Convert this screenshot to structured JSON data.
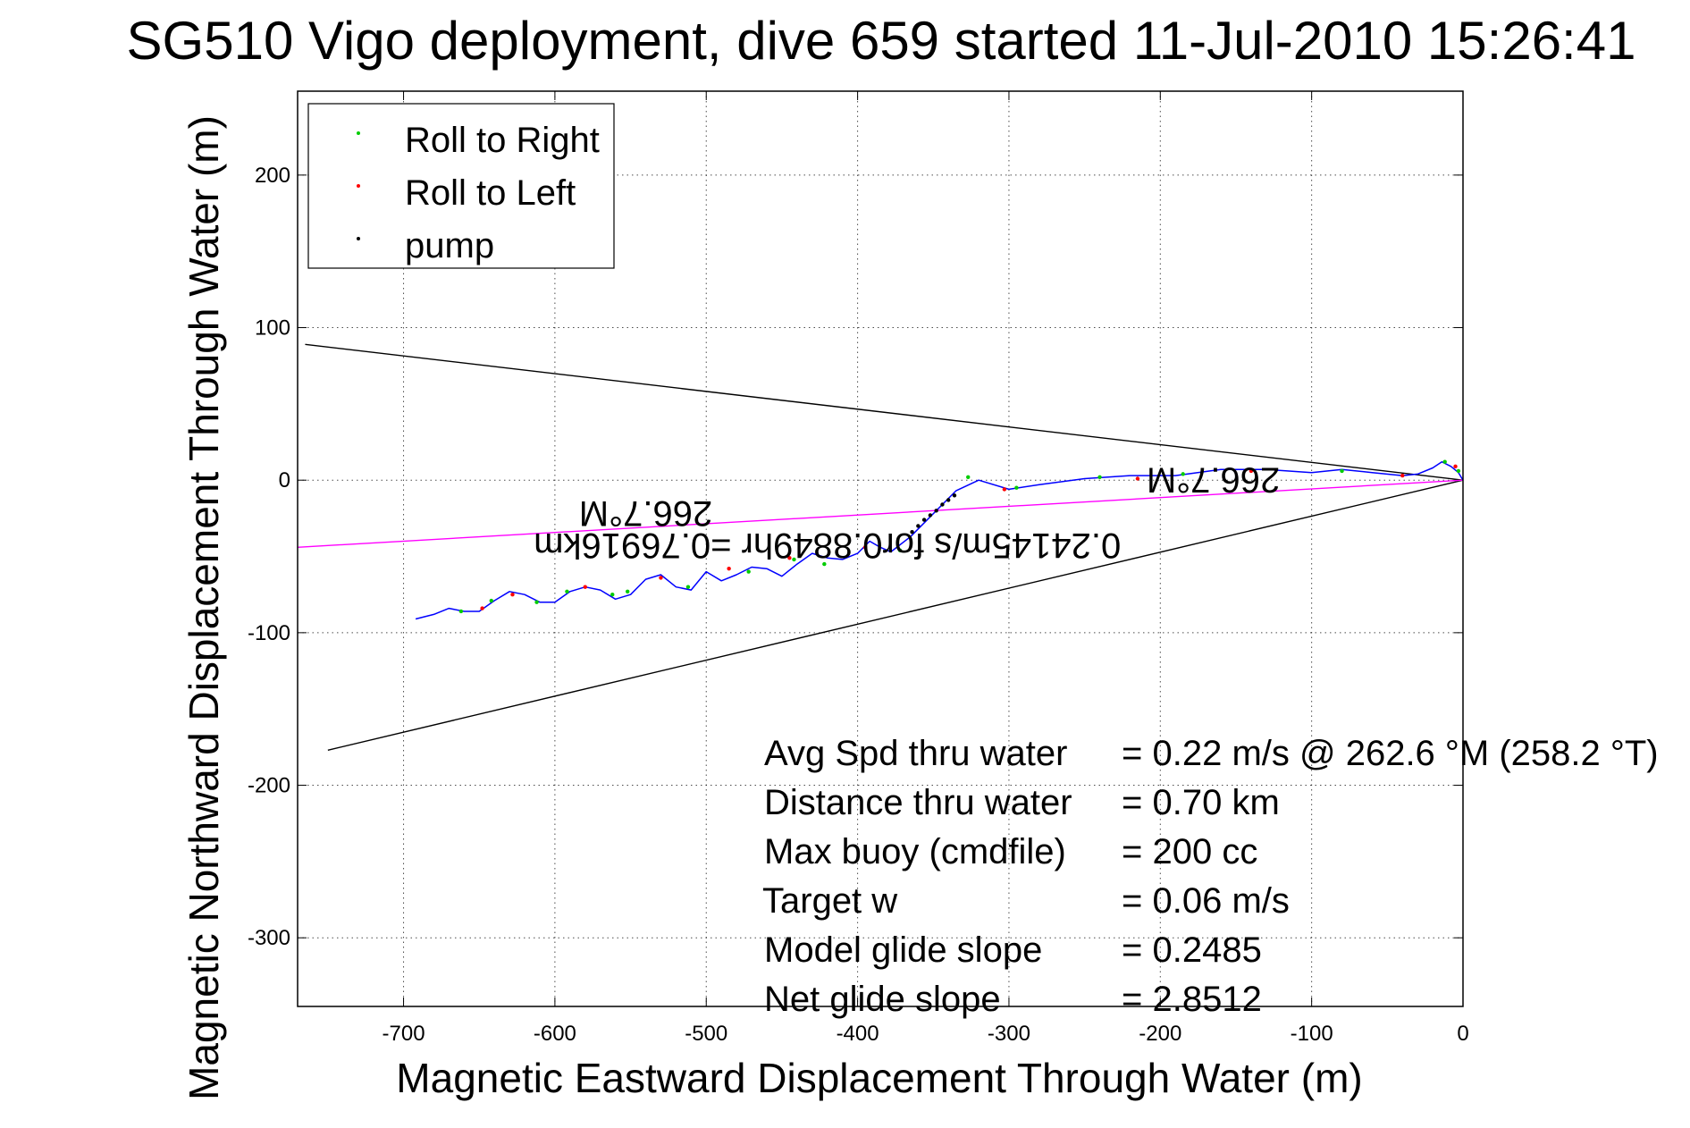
{
  "chart_data": {
    "type": "line",
    "title": "SG510 Vigo deployment, dive 659 started 11-Jul-2010 15:26:41",
    "xlabel": "Magnetic Eastward Displacement Through Water (m)",
    "ylabel": "Magnetic Northward Displacement Through Water (m)",
    "xlim": [
      -770,
      0
    ],
    "ylim": [
      -345,
      255
    ],
    "grid": true,
    "legend_position": "top-left",
    "x_ticks": [
      -700,
      -600,
      -500,
      -400,
      -300,
      -200,
      -100,
      0
    ],
    "x_tick_labels": [
      "-700",
      "-600",
      "-500",
      "-400",
      "-300",
      "-200",
      "-100",
      "0"
    ],
    "y_ticks": [
      200,
      100,
      0,
      -100,
      -200,
      -300
    ],
    "y_tick_labels": [
      "200",
      "100",
      "0",
      "-100",
      "-200",
      "-300"
    ],
    "series": [
      {
        "name": "Roll to Right",
        "color": "#00cc00",
        "marker": "dot"
      },
      {
        "name": "Roll to Left",
        "color": "#ff0000",
        "marker": "dot"
      },
      {
        "name": "pump",
        "color": "#000000",
        "marker": "dot"
      }
    ],
    "track": {
      "color": "#0000ff",
      "x": [
        0,
        -3,
        -8,
        -14,
        -20,
        -30,
        -40,
        -60,
        -80,
        -100,
        -130,
        -160,
        -190,
        -220,
        -250,
        -280,
        -300,
        -320,
        -335,
        -350,
        -365,
        -378,
        -385,
        -392,
        -400,
        -410,
        -420,
        -430,
        -440,
        -450,
        -460,
        -470,
        -480,
        -490,
        -500,
        -510,
        -520,
        -530,
        -540,
        -550,
        -560,
        -570,
        -580,
        -590,
        -600,
        -610,
        -620,
        -630,
        -640,
        -650,
        -660,
        -670,
        -680,
        -692
      ],
      "y": [
        0,
        5,
        9,
        12,
        8,
        4,
        3,
        5,
        7,
        5,
        7,
        7,
        3,
        3,
        1,
        -3,
        -6,
        0,
        -7,
        -22,
        -37,
        -47,
        -44,
        -40,
        -48,
        -52,
        -51,
        -48,
        -55,
        -63,
        -58,
        -57,
        -62,
        -66,
        -60,
        -72,
        -70,
        -62,
        -65,
        -75,
        -78,
        -72,
        -70,
        -73,
        -80,
        -80,
        -75,
        -73,
        -79,
        -86,
        -86,
        -84,
        -88,
        -91
      ]
    },
    "markers": {
      "roll_right": {
        "x": [
          -3,
          -12,
          -80,
          -185,
          -240,
          -295,
          -327,
          -372,
          -422,
          -442,
          -472,
          -512,
          -552,
          -562,
          -592,
          -612,
          -642,
          -662
        ],
        "y": [
          6,
          12,
          6,
          4,
          2,
          -5,
          2,
          -46,
          -55,
          -52,
          -60,
          -70,
          -73,
          -75,
          -73,
          -80,
          -79,
          -86
        ]
      },
      "roll_left": {
        "x": [
          -5,
          -40,
          -140,
          -215,
          -303,
          -395,
          -445,
          -485,
          -530,
          -580,
          -628,
          -648
        ],
        "y": [
          9,
          3,
          6,
          1,
          -6,
          -44,
          -51,
          -58,
          -64,
          -70,
          -75,
          -84
        ]
      },
      "pump": {
        "x": [
          -352,
          -348,
          -344,
          -340,
          -336,
          -356,
          -360,
          -364
        ],
        "y": [
          -23,
          -20,
          -16,
          -13,
          -10,
          -26,
          -30,
          -34
        ]
      }
    },
    "lines": [
      {
        "kind": "upper-bound",
        "color": "#000000",
        "x": [
          -765,
          0
        ],
        "y": [
          89,
          0
        ]
      },
      {
        "kind": "lower-bound",
        "color": "#000000",
        "x": [
          -750,
          0
        ],
        "y": [
          -177,
          0
        ]
      },
      {
        "kind": "heading",
        "color": "#ff00ff",
        "x": [
          -770,
          0
        ],
        "y": [
          -44,
          0
        ]
      }
    ],
    "annotations": [
      {
        "text": "266.7°M",
        "x": -540,
        "y": -14,
        "rotation": 180
      },
      {
        "text": "0.24145m/s for0.8849hr =0.76916km",
        "x": -420,
        "y": -35,
        "rotation": 180
      },
      {
        "text": "266.7°M",
        "x": -165,
        "y": 8,
        "rotation": 180
      }
    ]
  },
  "stats": [
    {
      "label": "Avg Spd thru water",
      "value": "=  0.22 m/s @ 262.6 °M (258.2 °T)"
    },
    {
      "label": "Distance thru water",
      "value": "=  0.70 km"
    },
    {
      "label": "Max buoy (cmdfile)",
      "value": "= 200 cc"
    },
    {
      "label": "Target w",
      "value": "= 0.06 m/s"
    },
    {
      "label": "Model glide slope",
      "value": "= 0.2485"
    },
    {
      "label": "Net glide slope",
      "value": "= 2.8512"
    }
  ]
}
